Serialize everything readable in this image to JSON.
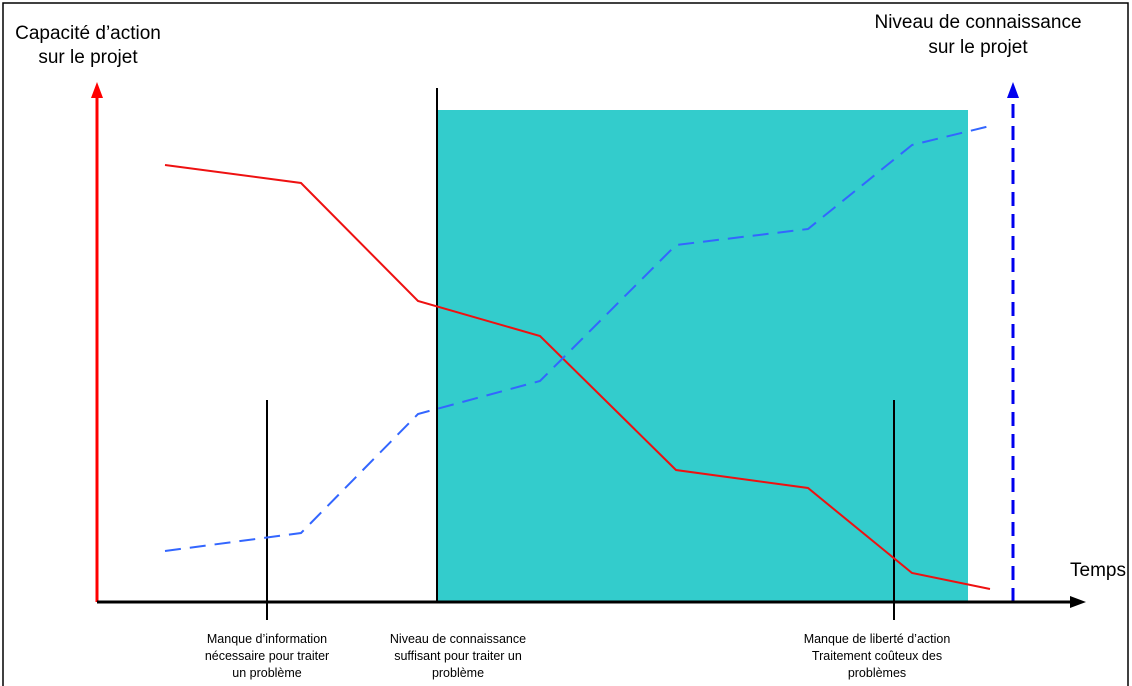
{
  "left_axis": {
    "label": [
      "Capacité d’action",
      "sur le projet"
    ]
  },
  "right_axis": {
    "label": [
      "Niveau de connaissance",
      "sur le projet"
    ]
  },
  "x_axis": {
    "label": "Temps"
  },
  "annotations": [
    [
      "Manque d’information",
      "nécessaire pour traiter",
      "un problème"
    ],
    [
      "Niveau de connaissance",
      "suffisant pour traiter un",
      "problème"
    ],
    [
      "Manque de liberté d’action",
      "Traitement coûteux des",
      "problèmes"
    ]
  ]
}
